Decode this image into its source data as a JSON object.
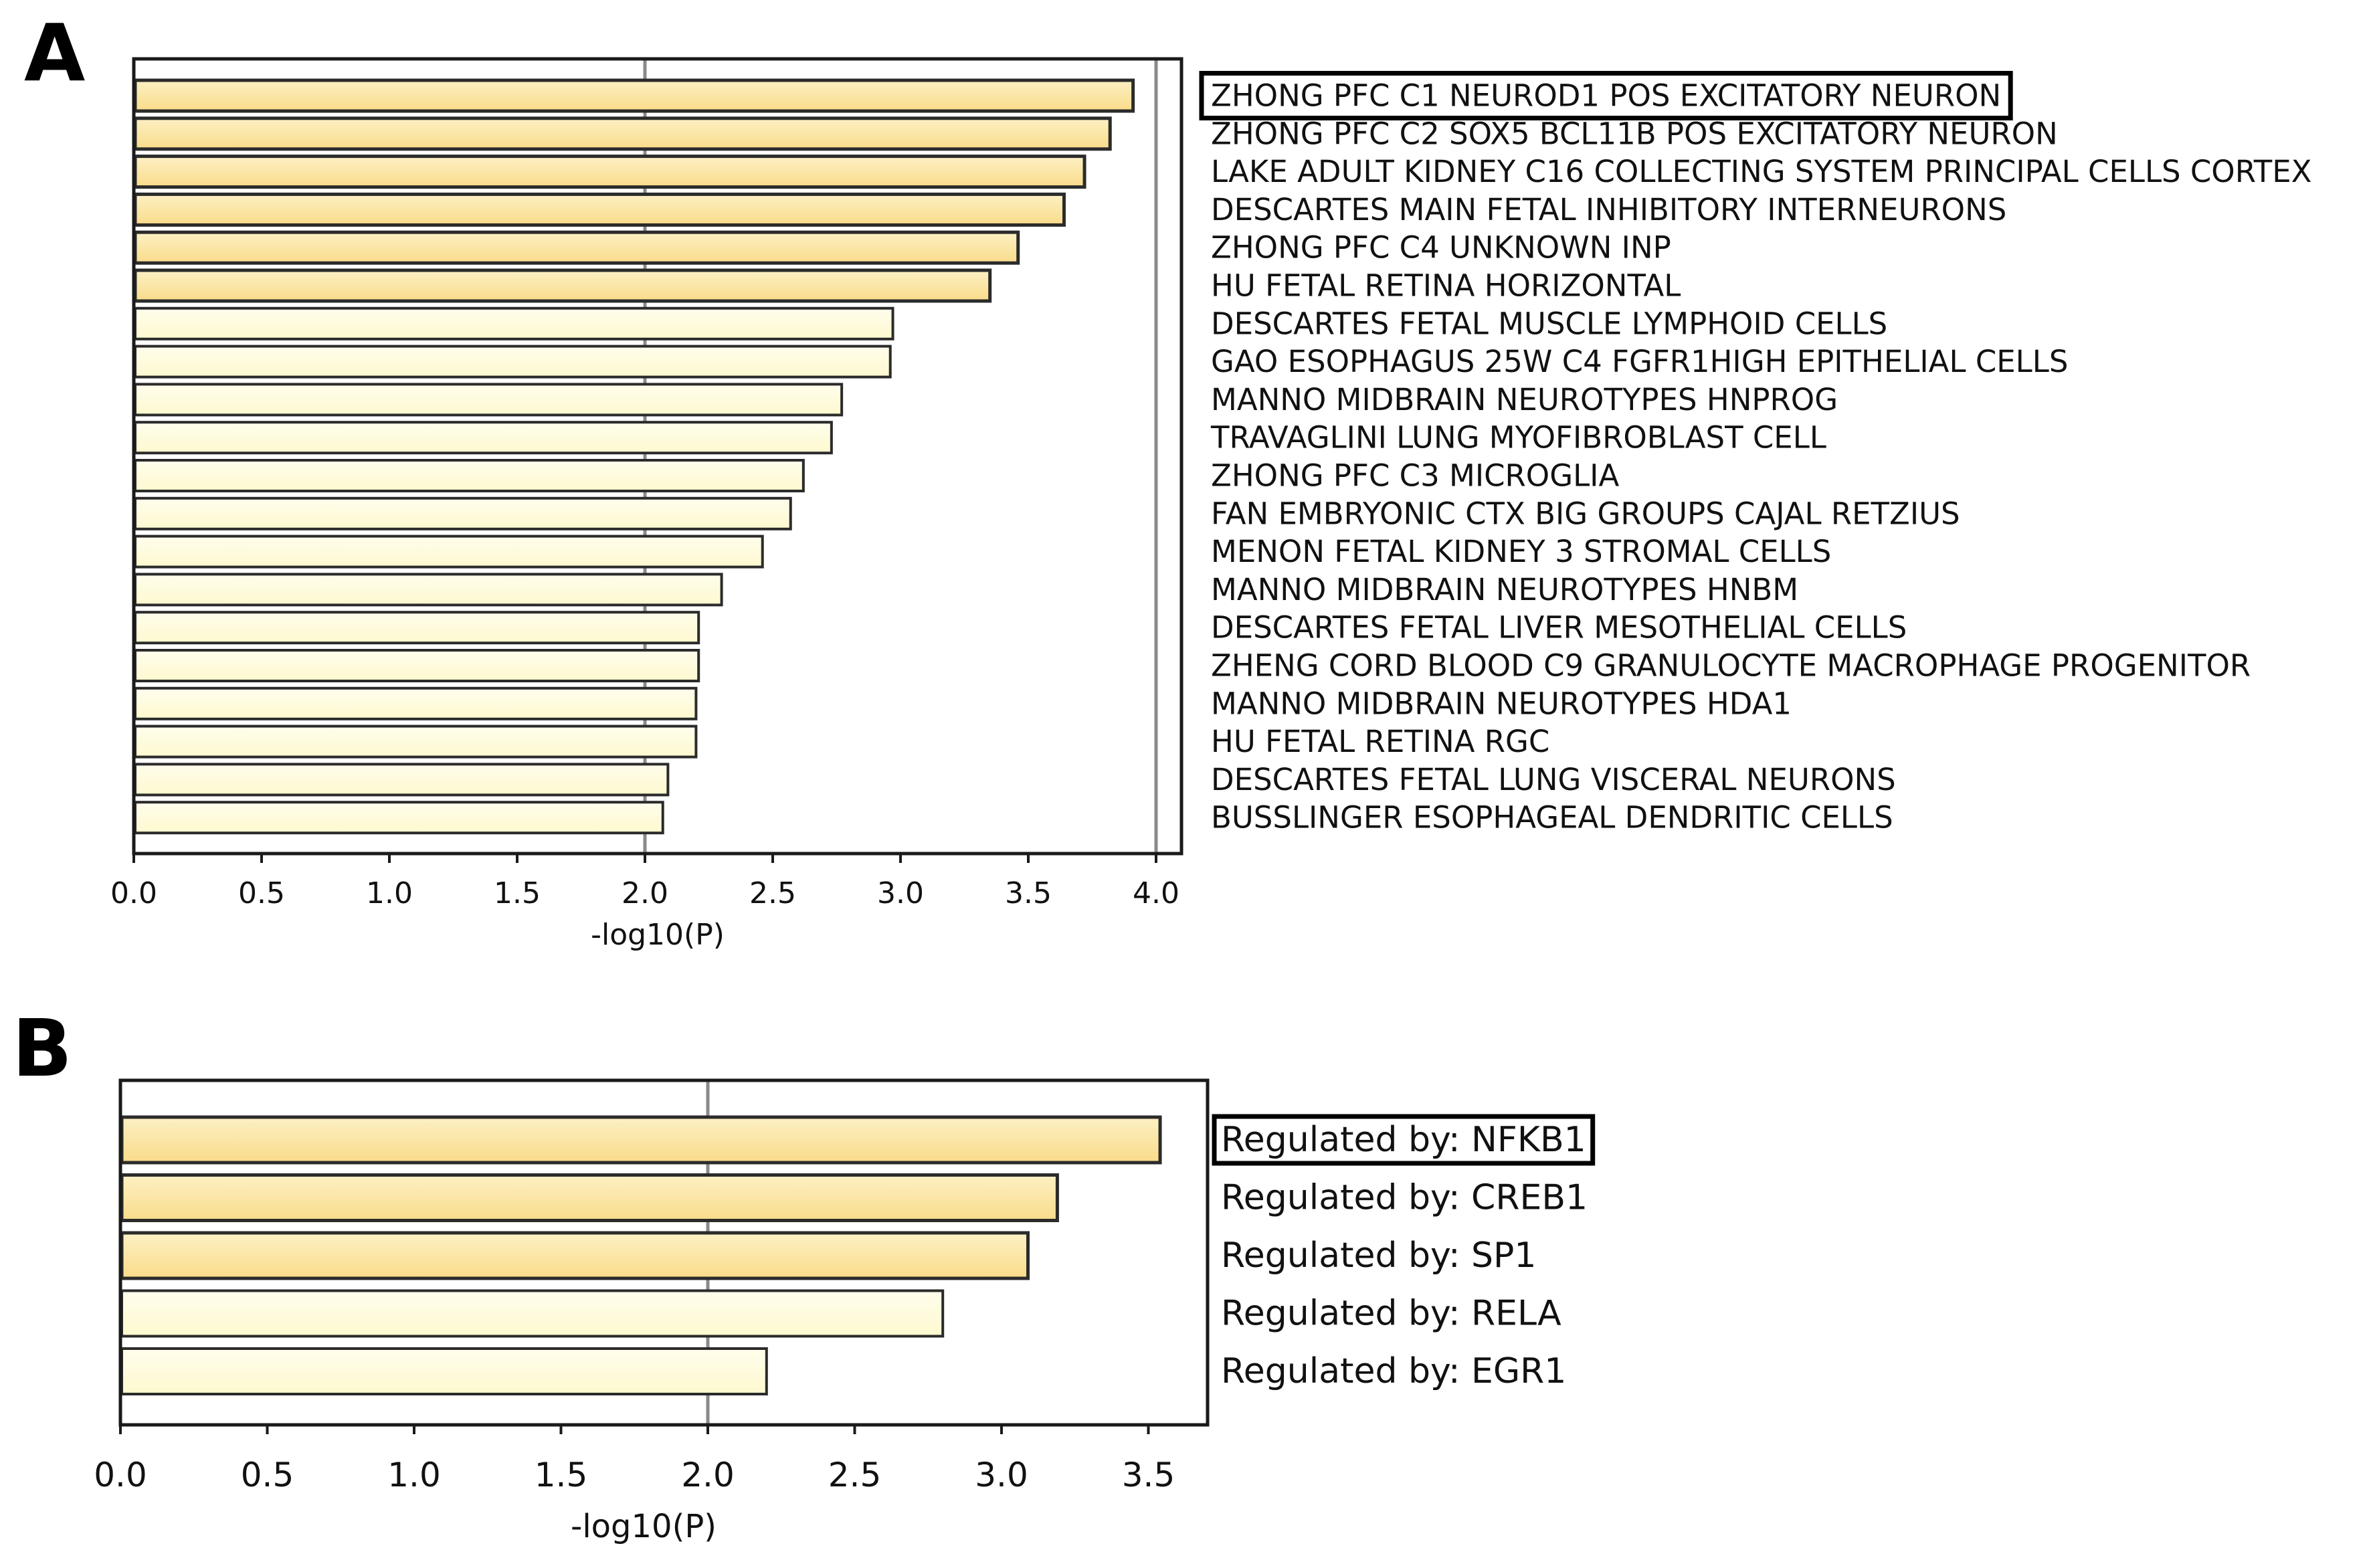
{
  "colors": {
    "bar_strong": "#f9dc8a",
    "bar_strong_top": "#fdf0c4",
    "bar_weak": "#fdf9cf",
    "bar_weak_top": "#fffdec",
    "bar_stroke": "#2b2b2b",
    "axis": "#1a1a1a",
    "threshold_line": "#8a8a8a",
    "text": "#111111"
  },
  "chart_data": [
    {
      "panel": "A",
      "type": "bar",
      "orientation": "horizontal",
      "xlabel": "-log10(P)",
      "xlim": [
        0,
        4.1
      ],
      "xticks": [
        "0.0",
        "0.5",
        "1.0",
        "1.5",
        "2.0",
        "2.5",
        "3.0",
        "3.5",
        "4.0"
      ],
      "reference_lines": [
        2.0,
        4.0
      ],
      "highlighted_label_index": 0,
      "strong_count": 6,
      "categories": [
        "ZHONG PFC C1 NEUROD1 POS EXCITATORY NEURON",
        "ZHONG PFC C2 SOX5 BCL11B POS EXCITATORY NEURON",
        "LAKE ADULT KIDNEY C16 COLLECTING SYSTEM PRINCIPAL CELLS CORTEX",
        "DESCARTES MAIN FETAL INHIBITORY INTERNEURONS",
        "ZHONG PFC C4 UNKNOWN INP",
        "HU FETAL RETINA HORIZONTAL",
        "DESCARTES FETAL MUSCLE LYMPHOID CELLS",
        "GAO ESOPHAGUS 25W C4 FGFR1HIGH EPITHELIAL CELLS",
        "MANNO MIDBRAIN NEUROTYPES HNPROG",
        "TRAVAGLINI LUNG MYOFIBROBLAST CELL",
        "ZHONG PFC C3 MICROGLIA",
        "FAN EMBRYONIC CTX BIG GROUPS CAJAL RETZIUS",
        "MENON FETAL KIDNEY 3 STROMAL CELLS",
        "MANNO MIDBRAIN NEUROTYPES HNBM",
        "DESCARTES FETAL LIVER MESOTHELIAL CELLS",
        "ZHENG CORD BLOOD C9 GRANULOCYTE MACROPHAGE PROGENITOR",
        "MANNO MIDBRAIN NEUROTYPES HDA1",
        "HU FETAL RETINA RGC",
        "DESCARTES FETAL LUNG VISCERAL NEURONS",
        "BUSSLINGER ESOPHAGEAL DENDRITIC CELLS"
      ],
      "values": [
        3.91,
        3.82,
        3.72,
        3.64,
        3.46,
        3.35,
        2.97,
        2.96,
        2.77,
        2.73,
        2.62,
        2.57,
        2.46,
        2.3,
        2.21,
        2.21,
        2.2,
        2.2,
        2.09,
        2.07
      ]
    },
    {
      "panel": "B",
      "type": "bar",
      "orientation": "horizontal",
      "xlabel": "-log10(P)",
      "xlim": [
        0,
        3.7
      ],
      "xticks": [
        "0.0",
        "0.5",
        "1.0",
        "1.5",
        "2.0",
        "2.5",
        "3.0",
        "3.5"
      ],
      "reference_lines": [
        2.0
      ],
      "highlighted_label_index": 0,
      "strong_count": 3,
      "categories": [
        "Regulated by: NFKB1",
        "Regulated by: CREB1",
        "Regulated by: SP1",
        "Regulated by: RELA",
        "Regulated by: EGR1"
      ],
      "values": [
        3.54,
        3.19,
        3.09,
        2.8,
        2.2
      ]
    }
  ]
}
